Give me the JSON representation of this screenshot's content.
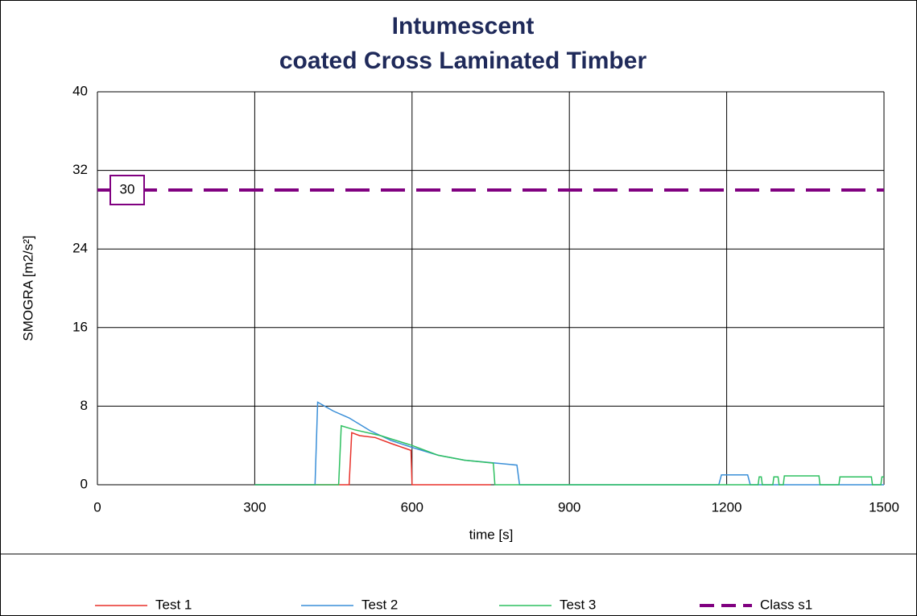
{
  "chart_data": {
    "type": "line",
    "title": [
      "Intumescent",
      "coated Cross Laminated Timber"
    ],
    "xlabel": "time [s]",
    "ylabel": "SMOGRA [m2/s²]",
    "xlim": [
      0,
      1500
    ],
    "xticks": [
      0,
      300,
      600,
      900,
      1200,
      1500
    ],
    "ylim": [
      0,
      40
    ],
    "yticks": [
      0,
      8,
      16,
      24,
      32,
      40
    ],
    "grid": true,
    "legend": "bottom",
    "annotation": "30",
    "series": [
      {
        "name": "Test 1",
        "color": "#e8312a",
        "x": [
          300,
          480,
          485,
          500,
          530,
          560,
          598,
          600,
          750
        ],
        "values": [
          0,
          0,
          5.3,
          5.0,
          4.8,
          4.2,
          3.5,
          0,
          0
        ]
      },
      {
        "name": "Test 2",
        "color": "#3a8fd8",
        "x": [
          300,
          415,
          420,
          450,
          480,
          520,
          560,
          600,
          650,
          700,
          760,
          800,
          805,
          1185,
          1190,
          1240,
          1245,
          1500
        ],
        "values": [
          0,
          0,
          8.4,
          7.5,
          6.8,
          5.5,
          4.5,
          3.8,
          3.0,
          2.5,
          2.2,
          2.0,
          0,
          0,
          1.0,
          1.0,
          0,
          0
        ]
      },
      {
        "name": "Test 3",
        "color": "#2ec060",
        "x": [
          300,
          460,
          465,
          490,
          540,
          600,
          650,
          700,
          755,
          758,
          1260,
          1262,
          1266,
          1268,
          1288,
          1290,
          1298,
          1300,
          1308,
          1310,
          1376,
          1378,
          1414,
          1416,
          1476,
          1478,
          1494,
          1496,
          1500
        ],
        "values": [
          0,
          0,
          6.0,
          5.6,
          5.0,
          4.0,
          3.0,
          2.5,
          2.2,
          0,
          0,
          0.8,
          0.8,
          0,
          0,
          0.8,
          0.8,
          0,
          0,
          0.9,
          0.9,
          0,
          0,
          0.8,
          0.8,
          0,
          0,
          0.8,
          0.8
        ]
      },
      {
        "name": "Class s1",
        "color": "#800080",
        "dashed": true,
        "x": [
          0,
          1500
        ],
        "values": [
          30,
          30
        ]
      }
    ]
  }
}
